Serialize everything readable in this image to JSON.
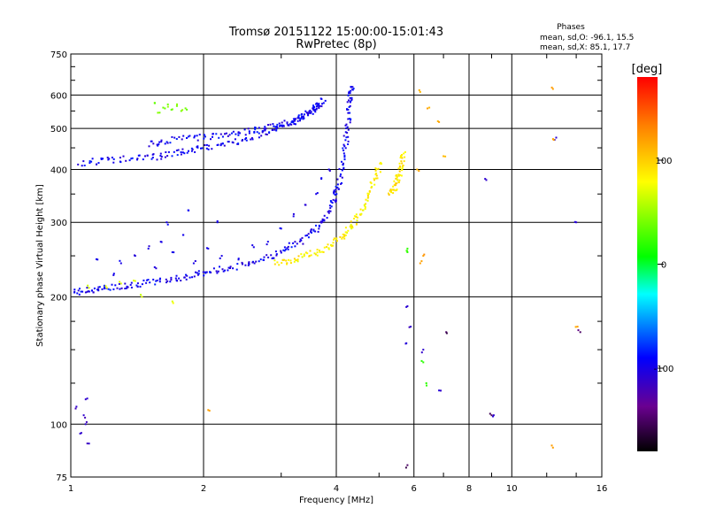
{
  "chart_data": {
    "type": "scatter",
    "title": "Tromsø 20151122 15:00:00-15:01:43",
    "subtitle": "RwPretec (8p)",
    "xlabel": "Frequency [MHz]",
    "ylabel": "Stationary phase Virtual Height [km]",
    "x_scale": "log",
    "y_scale": "log",
    "xlim": [
      1,
      16
    ],
    "ylim": [
      75,
      750
    ],
    "xticks": [
      1,
      2,
      4,
      6,
      8,
      10,
      16
    ],
    "xtick_labels": [
      "1",
      "2",
      "4",
      "6",
      "8",
      "10",
      "16"
    ],
    "yticks": [
      75,
      100,
      200,
      300,
      400,
      500,
      600,
      750
    ],
    "ytick_labels": [
      "75",
      "100",
      "200",
      "300",
      "400",
      "500",
      "600",
      "750"
    ],
    "grid": true,
    "legend": {
      "title": "Phases",
      "lines": [
        "mean, sd,O:  -96.1, 15.5",
        "mean, sd,X:  85.1, 17.7"
      ],
      "placement": "top-right"
    },
    "colorbar": {
      "label": "[deg]",
      "min": -180,
      "max": 180,
      "ticks": [
        100,
        0,
        -100
      ],
      "tick_labels": [
        "100",
        "0",
        "-100"
      ],
      "colormap": "rainbow (black-purple-blue-cyan-green-yellow-red)"
    },
    "series": [
      {
        "name": "O",
        "phase_mean": -96.1,
        "phase_sd": 15.5
      },
      {
        "name": "X",
        "phase_mean": 85.1,
        "phase_sd": 17.7
      }
    ],
    "traces": [
      {
        "mode": "O",
        "phase": -96,
        "x": [
          1.02,
          1.1,
          1.2,
          1.35,
          1.5,
          1.7,
          1.9,
          2.1,
          2.4,
          2.7,
          3.0,
          3.3,
          3.6,
          3.8,
          3.95,
          4.05,
          4.15,
          4.22,
          4.27,
          4.3,
          4.33
        ],
        "y": [
          205,
          207,
          210,
          213,
          216,
          220,
          225,
          230,
          236,
          245,
          255,
          270,
          290,
          310,
          340,
          370,
          420,
          480,
          540,
          590,
          630
        ]
      },
      {
        "mode": "O",
        "phase": -96,
        "x": [
          1.05,
          1.2,
          1.4,
          1.6,
          1.8,
          2.0,
          2.3,
          2.6,
          2.9,
          3.2,
          3.4,
          3.6,
          3.75
        ],
        "y": [
          415,
          420,
          425,
          430,
          440,
          450,
          460,
          480,
          500,
          520,
          540,
          560,
          590
        ]
      },
      {
        "mode": "O",
        "phase": -96,
        "x": [
          1.5,
          1.7,
          2.0,
          2.3,
          2.6,
          2.9,
          3.2,
          3.5,
          3.7
        ],
        "y": [
          460,
          470,
          478,
          485,
          495,
          505,
          520,
          545,
          575
        ]
      },
      {
        "mode": "X",
        "phase": 85,
        "x": [
          2.9,
          3.2,
          3.5,
          3.8,
          4.1,
          4.3,
          4.5,
          4.7,
          4.9,
          5.05
        ],
        "y": [
          240,
          245,
          252,
          262,
          275,
          290,
          310,
          340,
          380,
          420
        ]
      },
      {
        "mode": "X",
        "phase": 90,
        "x": [
          5.3,
          5.45,
          5.55,
          5.62,
          5.68
        ],
        "y": [
          350,
          365,
          385,
          410,
          440
        ]
      }
    ],
    "scatter": [
      {
        "phase": -100,
        "points": [
          [
            1.3,
            240
          ],
          [
            1.4,
            250
          ],
          [
            1.5,
            260
          ],
          [
            1.6,
            270
          ],
          [
            1.7,
            255
          ],
          [
            1.8,
            280
          ],
          [
            1.9,
            240
          ],
          [
            1.65,
            300
          ],
          [
            1.85,
            320
          ],
          [
            2.05,
            260
          ],
          [
            2.15,
            300
          ],
          [
            1.55,
            235
          ],
          [
            1.25,
            225
          ],
          [
            1.15,
            245
          ],
          [
            2.2,
            250
          ],
          [
            2.4,
            245
          ],
          [
            2.6,
            262
          ],
          [
            2.8,
            270
          ],
          [
            3.0,
            290
          ],
          [
            3.2,
            310
          ],
          [
            3.4,
            330
          ],
          [
            3.6,
            350
          ],
          [
            3.5,
            285
          ],
          [
            3.7,
            380
          ],
          [
            3.85,
            400
          ]
        ]
      },
      {
        "phase": 70,
        "points": [
          [
            1.2,
            212
          ],
          [
            1.3,
            215
          ],
          [
            1.4,
            218
          ],
          [
            1.1,
            210
          ],
          [
            1.7,
            195
          ],
          [
            1.45,
            200
          ]
        ]
      },
      {
        "phase": 40,
        "points": [
          [
            1.62,
            560
          ],
          [
            1.66,
            570
          ],
          [
            1.7,
            555
          ],
          [
            1.74,
            565
          ],
          [
            1.78,
            550
          ],
          [
            1.55,
            575
          ],
          [
            1.59,
            545
          ],
          [
            1.82,
            558
          ]
        ]
      },
      {
        "phase": -110,
        "points": [
          [
            1.03,
            110
          ],
          [
            1.05,
            95
          ],
          [
            1.07,
            105
          ],
          [
            1.08,
            100
          ],
          [
            1.1,
            90
          ],
          [
            1.09,
            115
          ]
        ]
      },
      {
        "phase": 110,
        "points": [
          [
            6.2,
            610
          ],
          [
            6.5,
            560
          ],
          [
            6.8,
            520
          ],
          [
            6.1,
            400
          ],
          [
            7.0,
            430
          ]
        ]
      },
      {
        "phase": -110,
        "points": [
          [
            5.8,
            190
          ],
          [
            5.9,
            170
          ],
          [
            6.3,
            150
          ],
          [
            5.75,
            155
          ],
          [
            6.9,
            120
          ],
          [
            8.7,
            380
          ],
          [
            9.1,
            105
          ],
          [
            12.5,
            470
          ],
          [
            14.0,
            300
          ]
        ]
      },
      {
        "phase": 20,
        "points": [
          [
            5.8,
            255
          ],
          [
            6.3,
            140
          ],
          [
            6.4,
            125
          ],
          [
            5.8,
            260
          ]
        ]
      },
      {
        "phase": -150,
        "points": [
          [
            7.1,
            165
          ],
          [
            5.8,
            80
          ],
          [
            9.0,
            105
          ],
          [
            14.3,
            165
          ]
        ]
      },
      {
        "phase": 120,
        "points": [
          [
            12.4,
            620
          ],
          [
            12.4,
            88
          ],
          [
            12.45,
            470
          ],
          [
            14.1,
            170
          ],
          [
            6.3,
            250
          ],
          [
            6.2,
            240
          ],
          [
            2.05,
            108
          ]
        ]
      }
    ]
  }
}
